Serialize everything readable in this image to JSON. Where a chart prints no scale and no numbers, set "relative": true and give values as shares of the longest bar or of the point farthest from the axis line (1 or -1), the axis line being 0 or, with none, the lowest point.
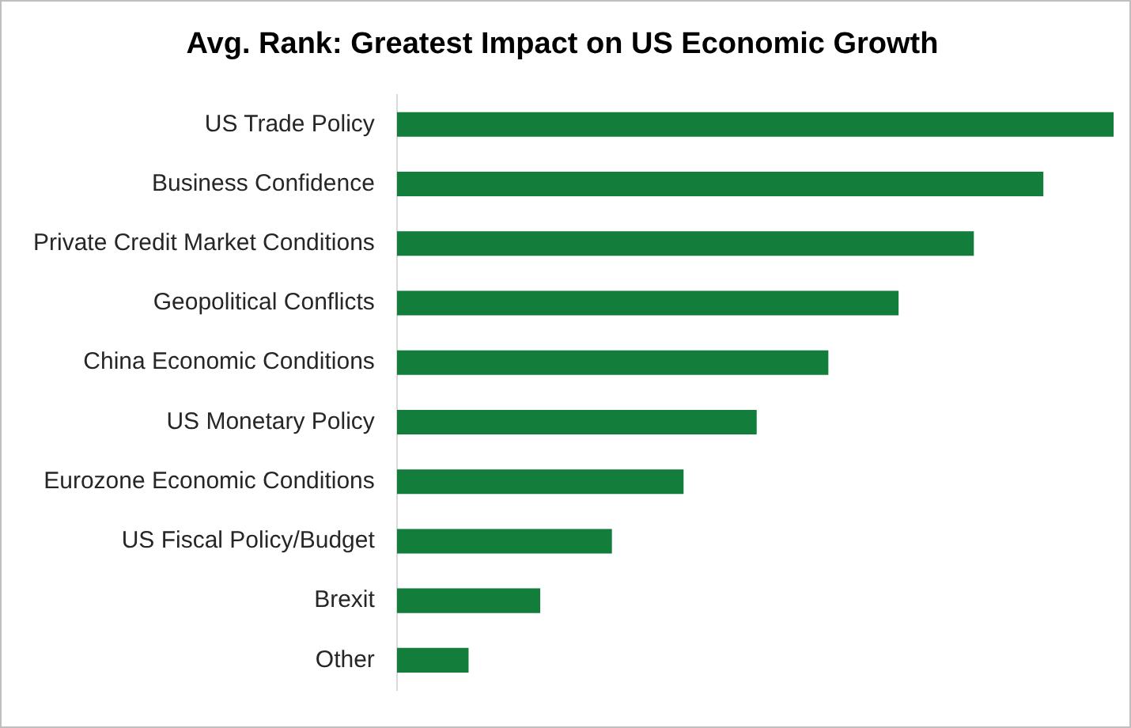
{
  "chart_data": {
    "type": "bar",
    "orientation": "horizontal",
    "relative": true,
    "title": "Avg. Rank: Greatest Impact on US Economic Growth",
    "categories": [
      "US Trade Policy",
      "Business Confidence",
      "Private Credit Market Conditions",
      "Geopolitical Conflicts",
      "China Economic Conditions",
      "US Monetary Policy",
      "Eurozone Economic Conditions",
      "US Fiscal Policy/Budget",
      "Brexit",
      "Other"
    ],
    "values": [
      1,
      0.902,
      0.805,
      0.7,
      0.602,
      0.502,
      0.4,
      0.3,
      0.2,
      0.1
    ],
    "color": "#137d3b"
  }
}
